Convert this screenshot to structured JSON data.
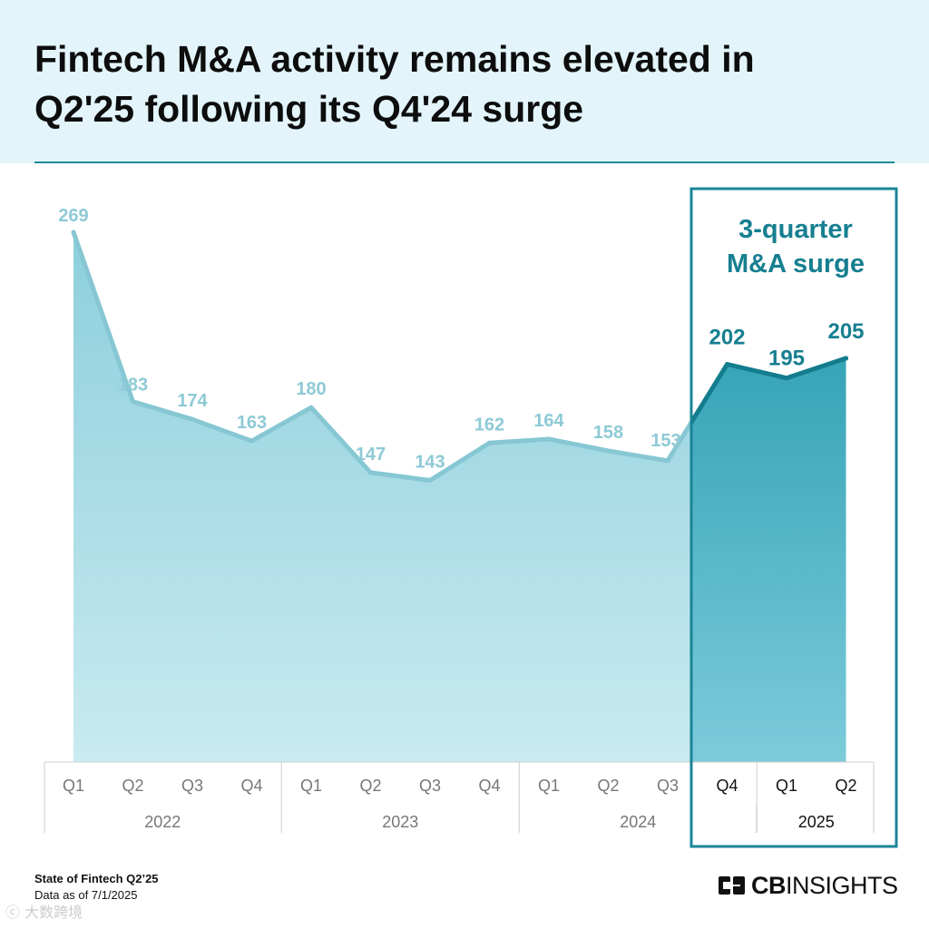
{
  "title": "Fintech M&A activity remains elevated in\nQ2'25 following its Q4'24 surge",
  "highlight_label_line1": "3-quarter",
  "highlight_label_line2": "M&A surge",
  "footer": {
    "source": "State of Fintech Q2’25",
    "date": "Data as of 7/1/2025"
  },
  "logo": {
    "bold": "CB",
    "light": "INSIGHTS"
  },
  "watermark": "大数跨境",
  "colors": {
    "area_top": "#8ccfdc",
    "area_bottom": "#c9eaf1",
    "line": "#86c7d3",
    "highlight_area_top": "#2098ad",
    "highlight_area_bottom": "#7ccbda",
    "highlight_line": "#137c8d",
    "highlight_box": "#1a8597",
    "label": "#8ecad6",
    "highlight_label": "#167f90"
  },
  "chart_data": {
    "type": "area",
    "categories": [
      "Q1",
      "Q2",
      "Q3",
      "Q4",
      "Q1",
      "Q2",
      "Q3",
      "Q4",
      "Q1",
      "Q2",
      "Q3",
      "Q4",
      "Q1",
      "Q2"
    ],
    "years": [
      {
        "label": "2022",
        "quarters": 4
      },
      {
        "label": "2023",
        "quarters": 4
      },
      {
        "label": "2024",
        "quarters": 4
      },
      {
        "label": "2025",
        "quarters": 2
      }
    ],
    "values": [
      269,
      183,
      174,
      163,
      180,
      147,
      143,
      162,
      164,
      158,
      153,
      202,
      195,
      205
    ],
    "highlight_start_index": 11,
    "title": "Fintech M&A activity remains elevated in Q2'25 following its Q4'24 surge",
    "xlabel": "",
    "ylabel": "",
    "ylim": [
      0,
      269
    ],
    "grid": false,
    "annotation": "3-quarter M&A surge"
  }
}
